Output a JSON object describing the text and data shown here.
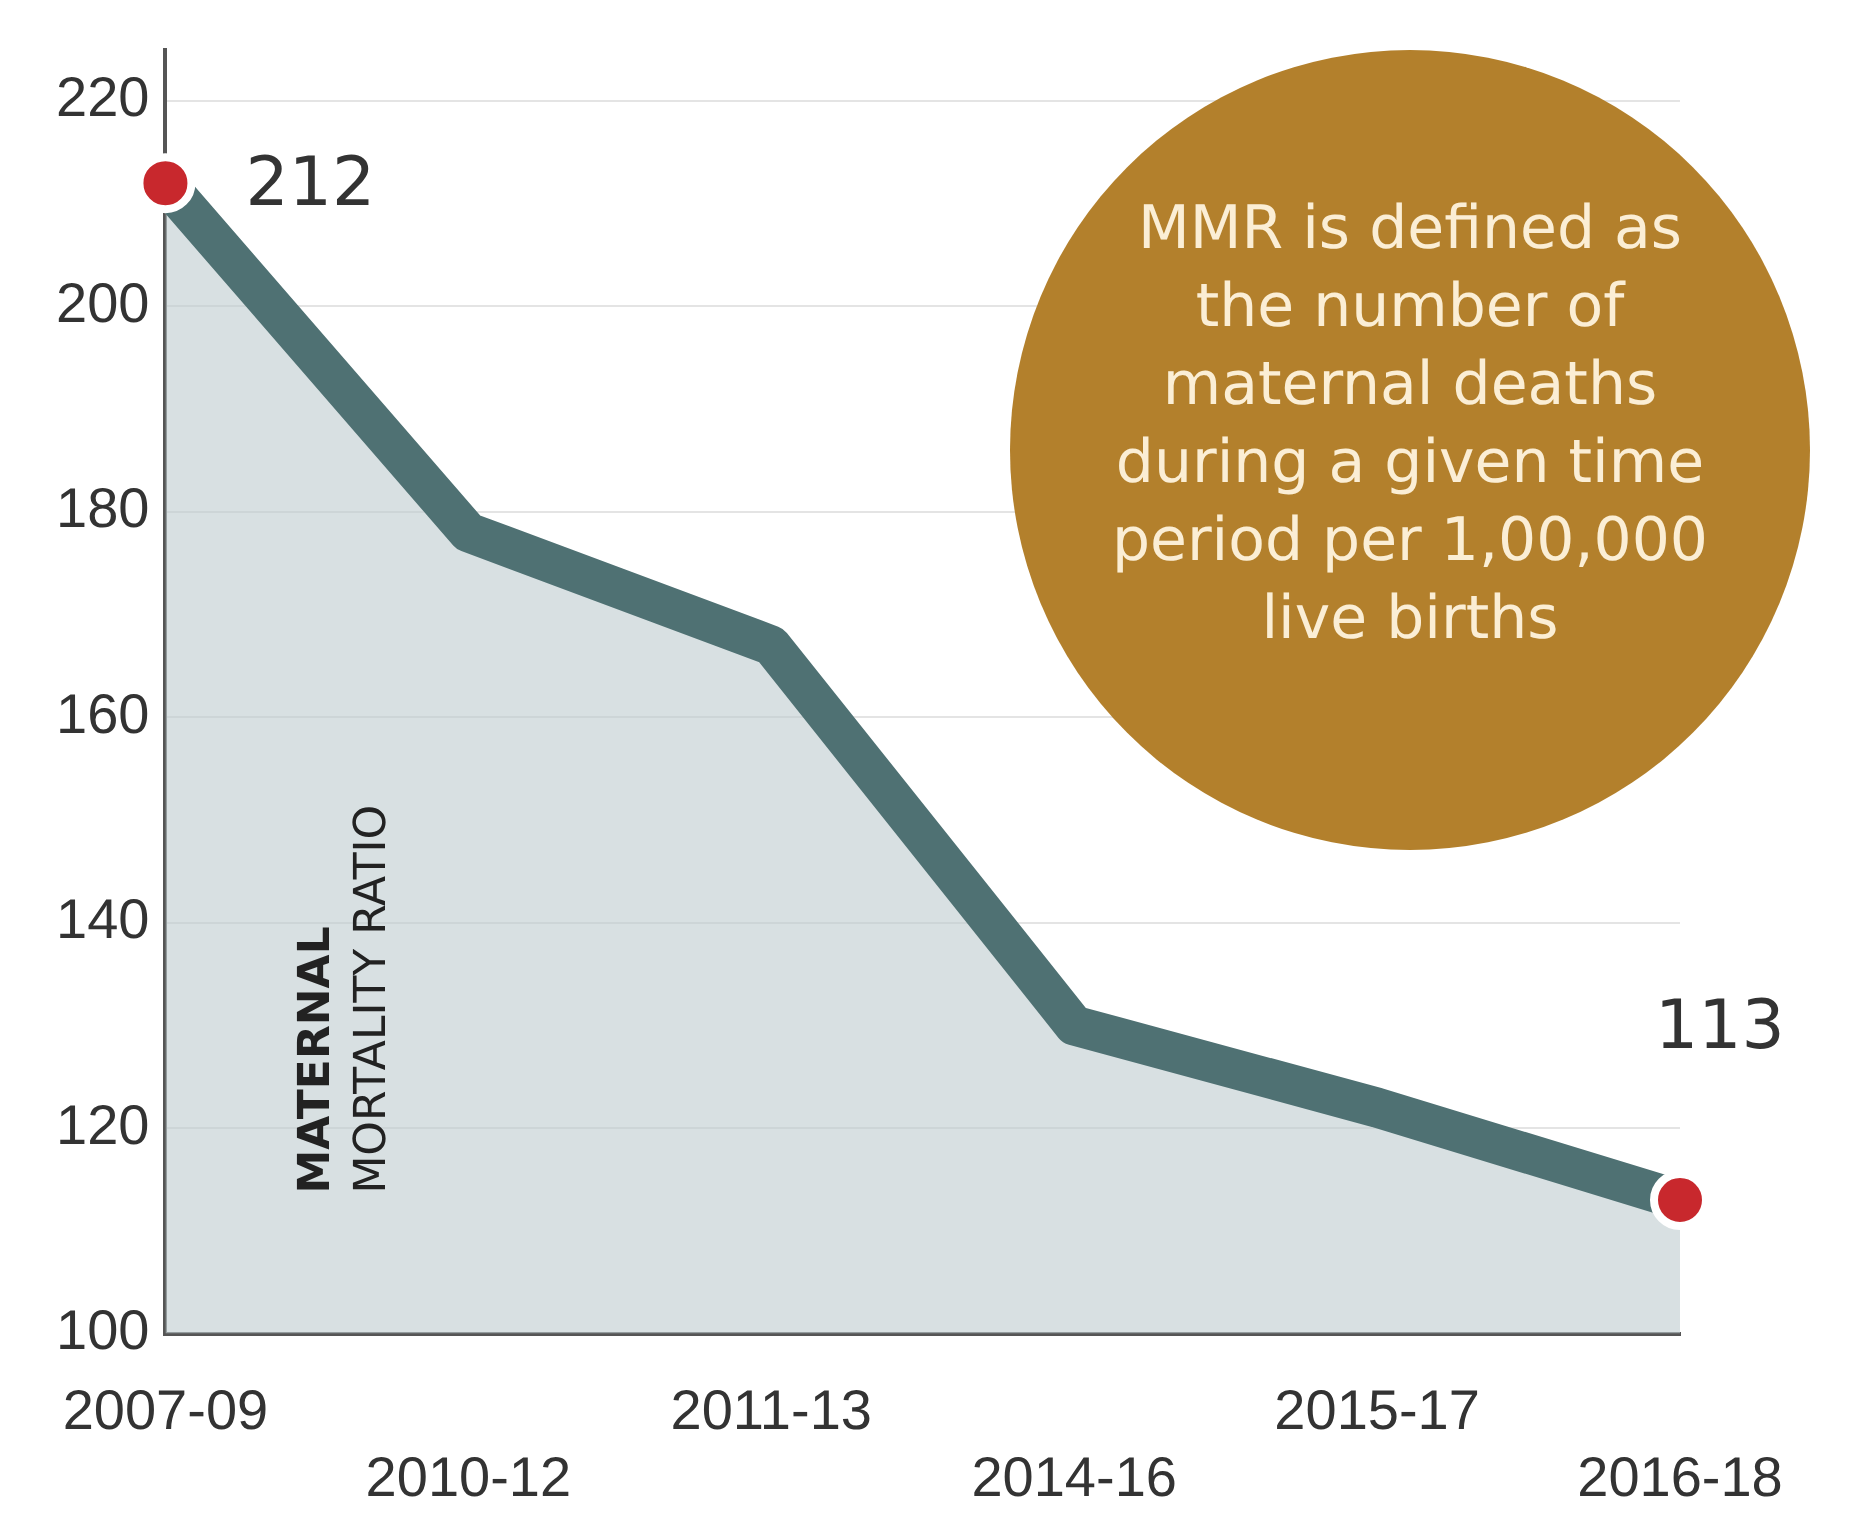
{
  "chart_data": {
    "type": "area",
    "ylabel": "MATERNAL MORTALITY RATIO",
    "categories": [
      "2007-09",
      "2010-12",
      "2011-13",
      "2014-16",
      "2015-17",
      "2016-18"
    ],
    "series": [
      {
        "color": "#4f7173",
        "values": [
          212,
          178,
          167,
          130,
          122,
          113
        ],
        "value_labels": [
          "212",
          null,
          null,
          null,
          null,
          "113"
        ]
      }
    ],
    "ylim": [
      100,
      225
    ],
    "yticks": [
      100,
      120,
      140,
      160,
      180,
      200,
      220
    ],
    "grid": "y",
    "legend": false,
    "annotations": [
      "MMR is defined as the number of maternal deaths during a given time period per 1,00,000 live births"
    ]
  }
}
